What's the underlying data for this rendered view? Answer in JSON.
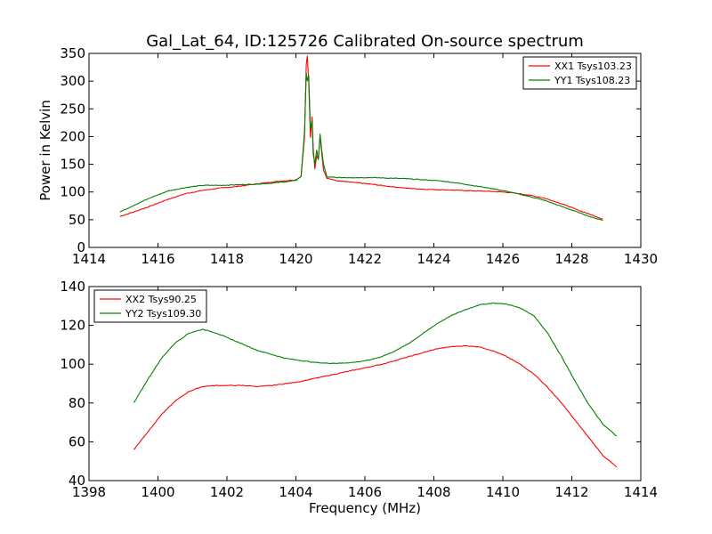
{
  "chart_data": [
    {
      "type": "line",
      "title": "Gal_Lat_64, ID:125726 Calibrated On-source spectrum",
      "xlabel": "",
      "ylabel": "Power in Kelvin",
      "xlim": [
        1414,
        1430
      ],
      "ylim": [
        0,
        350
      ],
      "xticks": [
        "1414",
        "1416",
        "1418",
        "1420",
        "1422",
        "1424",
        "1426",
        "1428",
        "1430"
      ],
      "yticks": [
        "0",
        "50",
        "100",
        "150",
        "200",
        "250",
        "300",
        "350"
      ],
      "xtick_values": [
        1414,
        1416,
        1418,
        1420,
        1422,
        1424,
        1426,
        1428,
        1430
      ],
      "ytick_values": [
        0,
        50,
        100,
        150,
        200,
        250,
        300,
        350
      ],
      "grid": false,
      "legend_position": "top-right",
      "series": [
        {
          "name": "XX1 Tsys103.23",
          "color": "#ff0000",
          "x": [
            1414.9,
            1415.3,
            1415.8,
            1416.3,
            1416.8,
            1417.3,
            1417.8,
            1418.3,
            1418.8,
            1419.3,
            1419.8,
            1420.0,
            1420.15,
            1420.25,
            1420.3,
            1420.33,
            1420.37,
            1420.42,
            1420.47,
            1420.5,
            1420.55,
            1420.6,
            1420.65,
            1420.7,
            1420.75,
            1420.8,
            1420.9,
            1421.2,
            1421.7,
            1422.2,
            1422.7,
            1423.2,
            1423.7,
            1424.2,
            1424.7,
            1425.2,
            1425.7,
            1426.2,
            1426.7,
            1427.2,
            1427.7,
            1428.2,
            1428.6,
            1428.9
          ],
          "values": [
            56,
            64,
            75,
            87,
            97,
            103,
            107,
            110,
            114,
            118,
            121,
            122,
            128,
            200,
            330,
            345,
            300,
            198,
            235,
            180,
            142,
            165,
            160,
            200,
            170,
            140,
            125,
            120,
            117,
            114,
            110,
            107,
            105,
            104,
            103,
            102,
            101,
            99,
            95,
            89,
            79,
            67,
            58,
            51
          ]
        },
        {
          "name": "YY1 Tsys108.23",
          "color": "#008000",
          "x": [
            1414.9,
            1415.3,
            1415.8,
            1416.3,
            1416.8,
            1417.3,
            1417.8,
            1418.3,
            1418.8,
            1419.3,
            1419.8,
            1420.0,
            1420.15,
            1420.25,
            1420.3,
            1420.33,
            1420.37,
            1420.42,
            1420.47,
            1420.5,
            1420.55,
            1420.6,
            1420.65,
            1420.7,
            1420.75,
            1420.8,
            1420.9,
            1421.2,
            1421.7,
            1422.2,
            1422.7,
            1423.2,
            1423.7,
            1424.2,
            1424.7,
            1425.2,
            1425.7,
            1426.2,
            1426.7,
            1427.2,
            1427.7,
            1428.2,
            1428.6,
            1428.9
          ],
          "values": [
            64,
            76,
            90,
            102,
            108,
            112,
            112,
            113,
            114,
            116,
            119,
            121,
            128,
            210,
            315,
            300,
            310,
            215,
            228,
            170,
            150,
            175,
            158,
            205,
            175,
            150,
            127,
            126,
            126,
            126,
            125,
            124,
            122,
            120,
            116,
            111,
            106,
            100,
            93,
            85,
            74,
            63,
            54,
            49
          ]
        }
      ]
    },
    {
      "type": "line",
      "title": "",
      "xlabel": "Frequency (MHz)",
      "ylabel": "",
      "xlim": [
        1398,
        1414
      ],
      "ylim": [
        40,
        140
      ],
      "xticks": [
        "1398",
        "1400",
        "1402",
        "1404",
        "1406",
        "1408",
        "1410",
        "1412",
        "1414"
      ],
      "yticks": [
        "40",
        "60",
        "80",
        "100",
        "120",
        "140"
      ],
      "xtick_values": [
        1398,
        1400,
        1402,
        1404,
        1406,
        1408,
        1410,
        1412,
        1414
      ],
      "ytick_values": [
        40,
        60,
        80,
        100,
        120,
        140
      ],
      "grid": false,
      "legend_position": "top-left",
      "series": [
        {
          "name": "XX2 Tsys90.25",
          "color": "#ff0000",
          "x": [
            1399.3,
            1399.7,
            1400.1,
            1400.5,
            1400.9,
            1401.3,
            1401.7,
            1402.1,
            1402.5,
            1402.9,
            1403.3,
            1403.7,
            1404.1,
            1404.5,
            1404.9,
            1405.3,
            1405.7,
            1406.1,
            1406.5,
            1406.9,
            1407.3,
            1407.7,
            1408.1,
            1408.5,
            1408.9,
            1409.3,
            1409.7,
            1410.1,
            1410.5,
            1410.9,
            1411.3,
            1411.7,
            1412.1,
            1412.5,
            1412.9,
            1413.3
          ],
          "values": [
            56,
            65,
            74,
            81,
            86,
            88.5,
            89,
            89,
            89,
            88.5,
            89,
            90,
            91,
            92.5,
            94,
            95.5,
            97,
            98.5,
            100,
            102,
            104,
            106,
            108,
            109,
            109.5,
            109,
            107,
            104,
            100,
            95,
            88,
            80,
            71,
            62,
            53,
            47
          ]
        },
        {
          "name": "YY2 Tsys109.30",
          "color": "#008000",
          "x": [
            1399.3,
            1399.7,
            1400.1,
            1400.5,
            1400.9,
            1401.3,
            1401.7,
            1402.1,
            1402.5,
            1402.9,
            1403.3,
            1403.7,
            1404.1,
            1404.5,
            1404.9,
            1405.3,
            1405.7,
            1406.1,
            1406.5,
            1406.9,
            1407.3,
            1407.7,
            1408.1,
            1408.5,
            1408.9,
            1409.3,
            1409.7,
            1410.1,
            1410.5,
            1410.9,
            1411.3,
            1411.7,
            1412.1,
            1412.5,
            1412.9,
            1413.3
          ],
          "values": [
            80,
            92,
            103,
            111,
            116,
            118,
            116,
            113,
            110,
            107,
            105,
            103,
            102,
            101,
            100.5,
            100.5,
            101,
            102,
            104,
            107,
            111,
            116,
            121,
            125,
            128,
            130.5,
            131.5,
            131,
            129,
            125,
            116,
            104,
            91,
            79,
            69,
            63
          ]
        }
      ]
    }
  ]
}
